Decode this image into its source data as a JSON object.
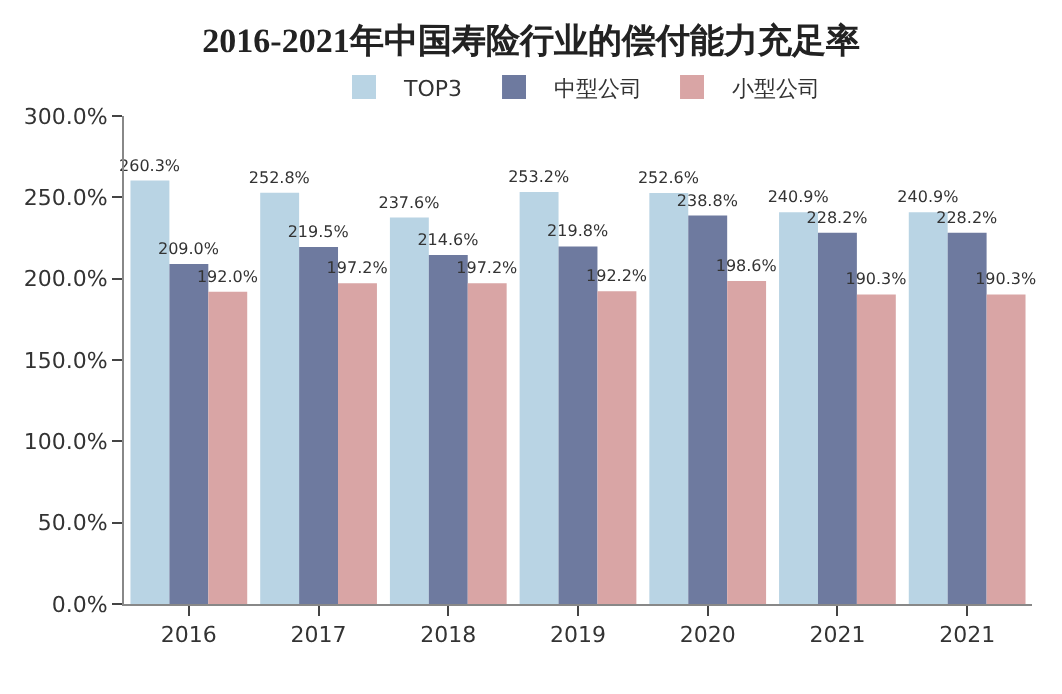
{
  "chart_data": {
    "type": "bar",
    "title": "2016-2021年中国寿险行业的偿付能力充足率",
    "categories": [
      "2016",
      "2017",
      "2018",
      "2019",
      "2020",
      "2021",
      "2021"
    ],
    "series": [
      {
        "name": "TOP3",
        "color": "#b9d4e4",
        "values": [
          260.3,
          252.8,
          237.6,
          253.2,
          252.6,
          240.9,
          240.9
        ],
        "value_labels": [
          "260.3%",
          "252.8%",
          "237.6%",
          "253.2%",
          "252.6%",
          "240.9%",
          "240.9%"
        ]
      },
      {
        "name": "中型公司",
        "color": "#6e7a9f",
        "values": [
          209.0,
          219.5,
          214.6,
          219.8,
          238.8,
          228.2,
          228.2
        ],
        "value_labels": [
          "209.0%",
          "219.5%",
          "214.6%",
          "219.8%",
          "238.8%",
          "228.2%",
          "228.2%"
        ]
      },
      {
        "name": "小型公司",
        "color": "#d9a5a5",
        "values": [
          192.0,
          197.2,
          197.2,
          192.2,
          198.6,
          190.3,
          190.3
        ],
        "value_labels": [
          "192.0%",
          "197.2%",
          "197.2%",
          "192.2%",
          "198.6%",
          "190.3%",
          "190.3%"
        ]
      }
    ],
    "ylim": [
      0,
      300
    ],
    "yticks": [
      {
        "value": 0,
        "label": "0.0%"
      },
      {
        "value": 50,
        "label": "50.0%"
      },
      {
        "value": 100,
        "label": "100.0%"
      },
      {
        "value": 150,
        "label": "150.0%"
      },
      {
        "value": 200,
        "label": "200.0%"
      },
      {
        "value": 250,
        "label": "250.0%"
      },
      {
        "value": 300,
        "label": "300.0%"
      }
    ],
    "grid": false,
    "legend": "top"
  }
}
